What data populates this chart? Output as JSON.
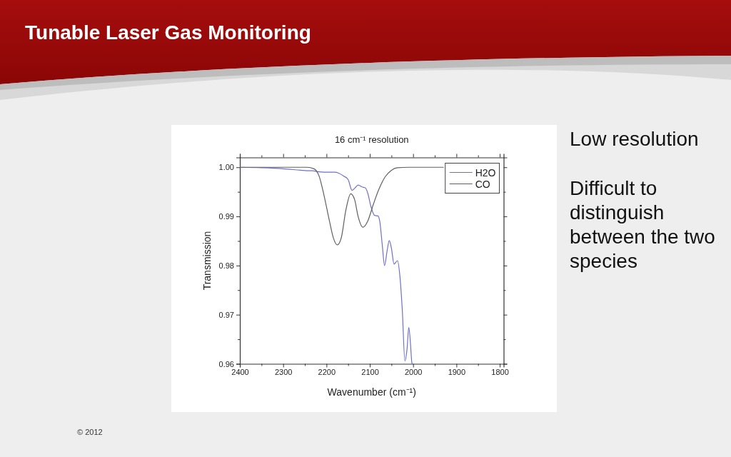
{
  "chart_data": {
    "type": "line",
    "title": "Tunable Laser Gas Monitoring",
    "subtitle": "16 cm⁻¹ resolution",
    "xlabel": "Wavenumber (cm⁻¹)",
    "ylabel": "Transmission",
    "xlim": [
      2400,
      1791
    ],
    "ylim": [
      0.96,
      1.002
    ],
    "xticks": [
      2400,
      {
        "value": 2350,
        "label": null
      },
      2300,
      {
        "value": 2250,
        "label": null
      },
      2200,
      {
        "value": 2150,
        "label": null
      },
      2100,
      {
        "value": 2050,
        "label": null
      },
      2000,
      {
        "value": 1950,
        "label": null
      },
      1900,
      {
        "value": 1850,
        "label": null
      },
      1800
    ],
    "yticks": [
      0.96,
      {
        "value": 0.965,
        "label": null
      },
      0.97,
      {
        "value": 0.975,
        "label": null
      },
      0.98,
      {
        "value": 0.985,
        "label": null
      },
      0.99,
      {
        "value": 0.995,
        "label": null
      },
      {
        "value": 1,
        "label": "1.00"
      }
    ],
    "legend": "top right",
    "line_style": "solid",
    "series": [
      {
        "name": "H2O",
        "color": "#6e70c8",
        "x": [
          2400,
          2350,
          2300,
          2260,
          2245,
          2232,
          2220,
          2205,
          2180,
          2172,
          2160,
          2150,
          2141,
          2134,
          2127,
          2118,
          2110,
          2105,
          2097,
          2089,
          2081,
          2077,
          2071,
          2066,
          2060,
          2055,
          2050,
          2044,
          2036,
          2031,
          2025,
          2019,
          2014,
          2010,
          2006,
          2003,
          2002
        ],
        "values": [
          1.0,
          0.9999,
          0.9997,
          0.9994,
          0.9993,
          0.9993,
          0.9991,
          0.999,
          0.999,
          0.9988,
          0.9982,
          0.9975,
          0.9953,
          0.9958,
          0.9964,
          0.996,
          0.9958,
          0.9948,
          0.9919,
          0.9902,
          0.9901,
          0.989,
          0.984,
          0.98,
          0.983,
          0.9851,
          0.9835,
          0.9803,
          0.981,
          0.9783,
          0.971,
          0.9606,
          0.963,
          0.9674,
          0.964,
          0.9603,
          0.96
        ]
      },
      {
        "name": "CO",
        "color": "#606060",
        "x": [
          2400,
          2300,
          2245,
          2229,
          2217,
          2207,
          2193,
          2184,
          2175,
          2166,
          2155,
          2144,
          2135,
          2127,
          2116,
          2105,
          2092,
          2080,
          2065,
          2050,
          2036,
          2010,
          1930
        ],
        "values": [
          1.0,
          1.0,
          1.0,
          0.9997,
          0.9982,
          0.9948,
          0.989,
          0.9856,
          0.9842,
          0.9856,
          0.9914,
          0.9946,
          0.9934,
          0.99,
          0.9878,
          0.989,
          0.9924,
          0.9953,
          0.998,
          0.9994,
          0.9999,
          1.0,
          1.0
        ]
      }
    ],
    "annotations": [
      "Low resolution",
      "Difficult to distinguish between the two species",
      "© 2012"
    ]
  }
}
